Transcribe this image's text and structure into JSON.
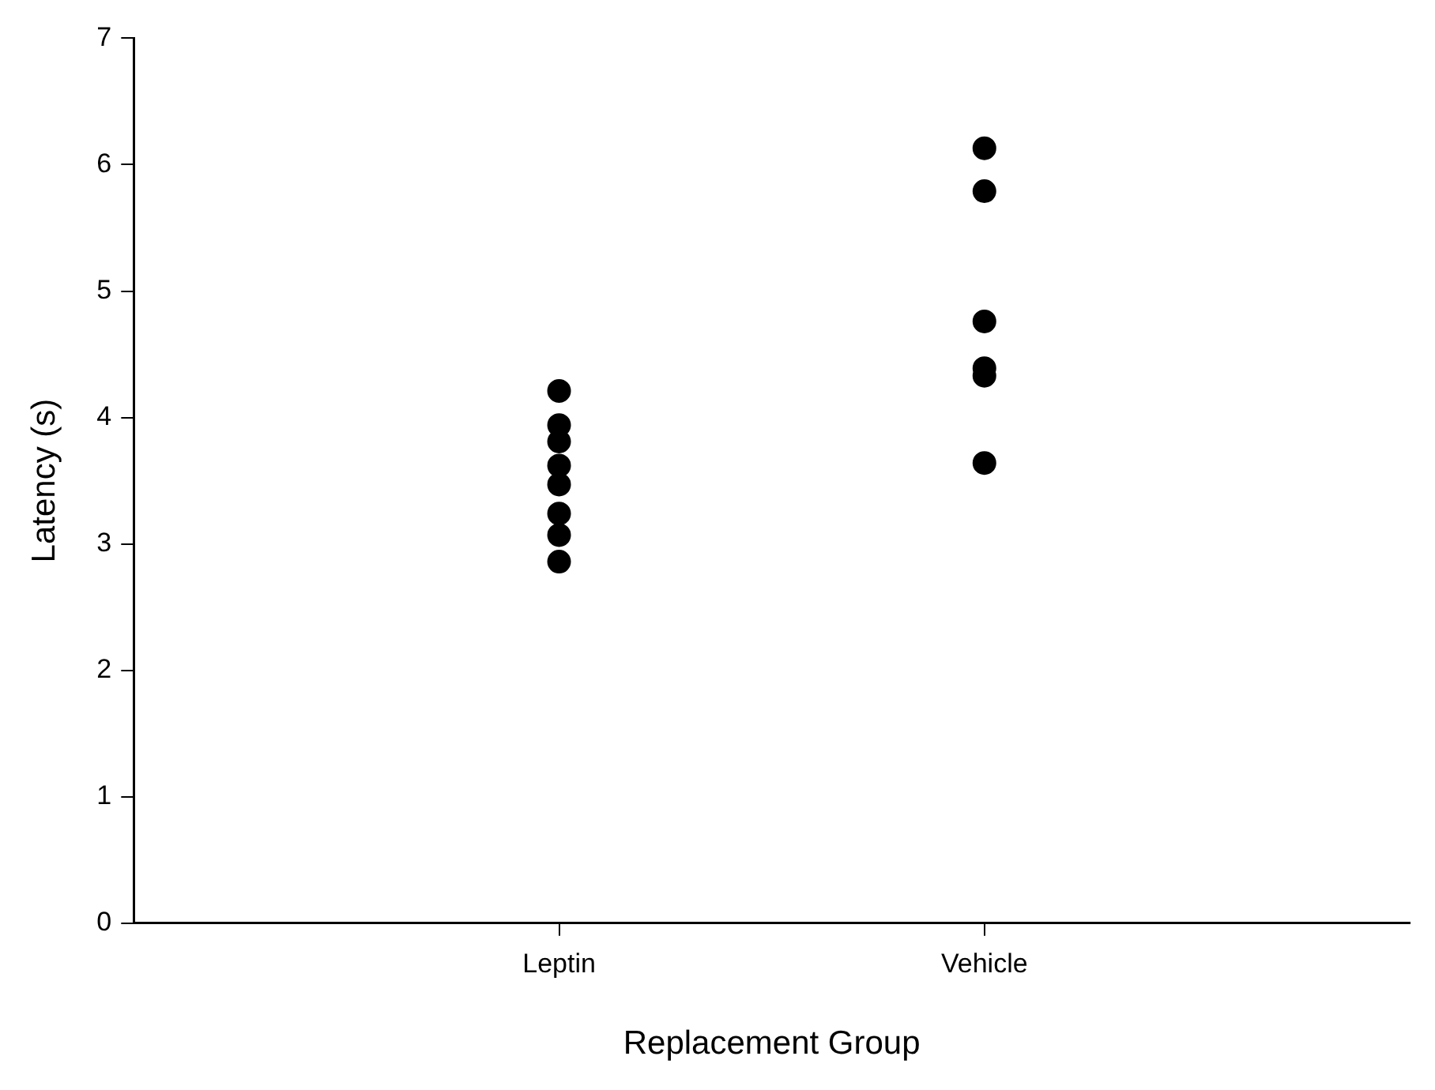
{
  "chart_data": {
    "type": "scatter",
    "xlabel": "Replacement Group",
    "ylabel": "Latency (s)",
    "categories": [
      "Leptin",
      "Vehicle"
    ],
    "series": [
      {
        "color": "#000000",
        "x": [
          "Leptin",
          "Leptin",
          "Leptin",
          "Leptin",
          "Leptin",
          "Leptin",
          "Leptin",
          "Leptin",
          "Vehicle",
          "Vehicle",
          "Vehicle",
          "Vehicle",
          "Vehicle",
          "Vehicle"
        ],
        "values": [
          4.21,
          3.94,
          3.81,
          3.62,
          3.47,
          3.24,
          3.07,
          2.86,
          6.13,
          5.79,
          4.76,
          4.39,
          4.33,
          3.64
        ]
      }
    ],
    "ylim": [
      0,
      7
    ],
    "yticks": [
      0,
      1,
      2,
      3,
      4,
      5,
      6,
      7
    ],
    "marker": "circle",
    "legend": false
  }
}
